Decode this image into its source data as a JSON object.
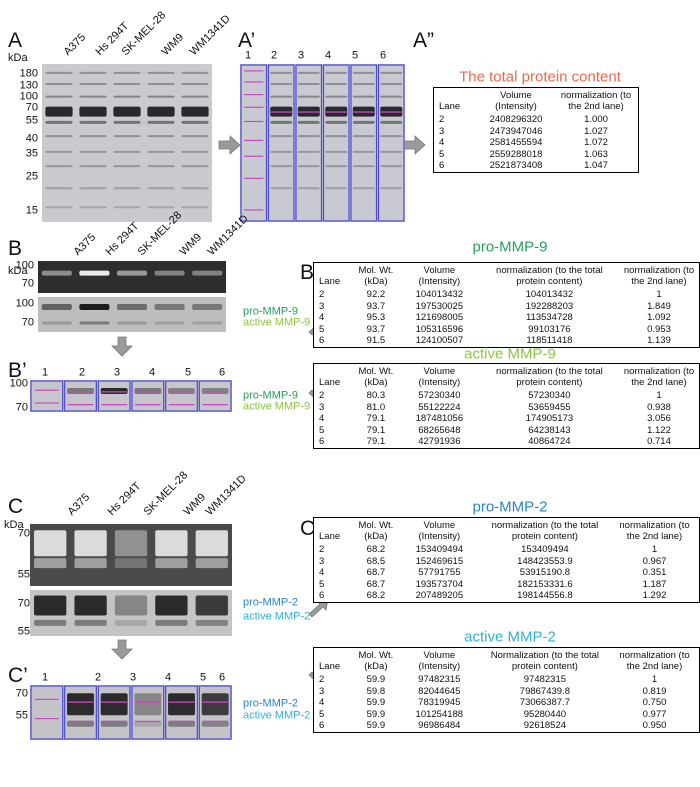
{
  "A": {
    "label": "A",
    "kda": "kDa",
    "lanes": [
      "A375",
      "Hs 294T",
      "SK-MEL-28",
      "WM9",
      "WM1341D"
    ],
    "markers": [
      "180",
      "130",
      "100",
      "70",
      "55",
      "40",
      "35",
      "25",
      "15"
    ]
  },
  "A2": {
    "label": "A’",
    "lanes": [
      "1",
      "2",
      "3",
      "4",
      "5",
      "6"
    ]
  },
  "A3": {
    "label": "A”",
    "title": "The total protein content",
    "table": {
      "header": [
        "Lane",
        "Volume (Intensity)",
        "normalization (to the 2nd lane)"
      ],
      "rows": [
        [
          "2",
          "2408296320",
          "1.000"
        ],
        [
          "3",
          "2473947046",
          "1.027"
        ],
        [
          "4",
          "2581455594",
          "1.072"
        ],
        [
          "5",
          "2559288018",
          "1.063"
        ],
        [
          "6",
          "2521873408",
          "1.047"
        ]
      ]
    }
  },
  "B": {
    "label": "B",
    "kda": "kDa",
    "lanes": [
      "A375",
      "Hs 294T",
      "SK-MEL-28",
      "WM9",
      "WM1341D"
    ],
    "gel1_markers": [
      "100",
      "70"
    ],
    "gel2_markers": [
      "100",
      "70"
    ],
    "bands": [
      "pro-MMP-9",
      "active MMP-9"
    ]
  },
  "B2": {
    "label": "B’",
    "markers": [
      "100",
      "70"
    ],
    "lanes": [
      "1",
      "2",
      "3",
      "4",
      "5",
      "6"
    ],
    "bands": [
      "pro-MMP-9",
      "active MMP-9"
    ]
  },
  "B3": {
    "label": "B”",
    "tables": [
      {
        "title": "pro-MMP-9",
        "header": [
          "Lane",
          "Mol. Wt. (kDa)",
          "Volume (Intensity)",
          "normalization (to the total protein content)",
          "normalization (to the 2nd lane)"
        ],
        "rows": [
          [
            "2",
            "92.2",
            "104013432",
            "104013432",
            "1"
          ],
          [
            "3",
            "93.7",
            "197530025",
            "192288203",
            "1.849"
          ],
          [
            "4",
            "95.3",
            "121698005",
            "113534728",
            "1.092"
          ],
          [
            "5",
            "93.7",
            "105316596",
            "99103176",
            "0.953"
          ],
          [
            "6",
            "91.5",
            "124100507",
            "118511418",
            "1.139"
          ]
        ]
      },
      {
        "title": "active MMP-9",
        "header": [
          "Lane",
          "Mol. Wt. (kDa)",
          "Volume (Intensity)",
          "normalization (to the total protein content)",
          "normalization (to the 2nd lane)"
        ],
        "rows": [
          [
            "2",
            "80.3",
            "57230340",
            "57230340",
            "1"
          ],
          [
            "3",
            "81.0",
            "55122224",
            "53659455",
            "0.938"
          ],
          [
            "4",
            "79.1",
            "187481056",
            "174905173",
            "3.056"
          ],
          [
            "5",
            "79.1",
            "68265648",
            "64238143",
            "1.122"
          ],
          [
            "6",
            "79.1",
            "42791936",
            "40864724",
            "0.714"
          ]
        ]
      }
    ]
  },
  "C": {
    "label": "C",
    "kda": "kDa",
    "lanes": [
      "A375",
      "Hs 294T",
      "SK-MEL-28",
      "WM9",
      "WM1341D"
    ],
    "gel1_markers": [
      "70",
      "55"
    ],
    "gel2_markers": [
      "70",
      "55"
    ],
    "bands": [
      "pro-MMP-2",
      "active MMP-2"
    ]
  },
  "C2": {
    "label": "C’",
    "markers": [
      "70",
      "55"
    ],
    "lanes": [
      "1",
      "2",
      "3",
      "4",
      "5",
      "6"
    ],
    "bands": [
      "pro-MMP-2",
      "active MMP-2"
    ]
  },
  "C3": {
    "label": "C”",
    "tables": [
      {
        "title": "pro-MMP-2",
        "header": [
          "Lane",
          "Mol. Wt. (kDa)",
          "Volume (Intensity)",
          "normalization (to the total protein content)",
          "normalization (to the 2nd lane)"
        ],
        "rows": [
          [
            "2",
            "68.2",
            "153409494",
            "153409494",
            "1"
          ],
          [
            "3",
            "68.5",
            "152469615",
            "148423553.9",
            "0.967"
          ],
          [
            "4",
            "68.7",
            "57791755",
            "53915190.8",
            "0.351"
          ],
          [
            "5",
            "68.7",
            "193573704",
            "182153331.6",
            "1.187"
          ],
          [
            "6",
            "68.2",
            "207489205",
            "198144556.8",
            "1.292"
          ]
        ]
      },
      {
        "title": "active MMP-2",
        "header": [
          "Lane",
          "Mol. Wt. (kDa)",
          "Volume (Intensity)",
          "Normalization (to the total protein content)",
          "normalization (to the 2nd lane)"
        ],
        "rows": [
          [
            "2",
            "59.9",
            "97482315",
            "97482315",
            "1"
          ],
          [
            "3",
            "59.8",
            "82044645",
            "79867439.8",
            "0.819"
          ],
          [
            "4",
            "59.9",
            "78319945",
            "73066387.7",
            "0.750"
          ],
          [
            "5",
            "59.9",
            "101254188",
            "95280440",
            "0.977"
          ],
          [
            "6",
            "59.9",
            "96986484",
            "92618524",
            "0.950"
          ]
        ]
      }
    ]
  }
}
